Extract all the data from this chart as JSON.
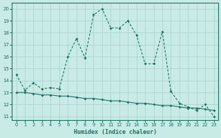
{
  "xlabel": "Humidex (Indice chaleur)",
  "xlim": [
    -0.5,
    23.5
  ],
  "ylim": [
    10.7,
    20.5
  ],
  "yticks": [
    11,
    12,
    13,
    14,
    15,
    16,
    17,
    18,
    19,
    20
  ],
  "xticks": [
    0,
    1,
    2,
    3,
    4,
    5,
    6,
    7,
    8,
    9,
    10,
    11,
    12,
    13,
    14,
    15,
    16,
    17,
    18,
    19,
    20,
    21,
    22,
    23
  ],
  "bg_color": "#c8ebe6",
  "grid_color": "#aad4ce",
  "line_color": "#1a6e62",
  "line1_x": [
    0,
    1,
    2,
    3,
    4,
    5,
    6,
    7,
    8,
    9,
    10,
    11,
    12,
    13,
    14,
    15,
    16,
    17,
    18,
    19,
    20,
    21,
    22,
    23
  ],
  "line1_y": [
    14.5,
    13.2,
    13.8,
    13.3,
    13.4,
    13.3,
    16.0,
    17.5,
    15.9,
    19.5,
    20.0,
    18.4,
    18.4,
    19.0,
    17.8,
    15.4,
    15.4,
    18.1,
    13.1,
    12.1,
    11.8,
    11.5,
    12.0,
    11.0
  ],
  "line2_x": [
    0,
    1,
    2,
    3,
    4,
    5,
    6,
    7,
    8,
    9,
    10,
    11,
    12,
    13,
    14,
    15,
    16,
    17,
    18,
    19,
    20,
    21,
    22,
    23
  ],
  "line2_y": [
    13.0,
    13.0,
    12.9,
    12.8,
    12.8,
    12.7,
    12.7,
    12.6,
    12.5,
    12.5,
    12.4,
    12.3,
    12.3,
    12.2,
    12.1,
    12.1,
    12.0,
    11.9,
    11.9,
    11.8,
    11.7,
    11.7,
    11.6,
    11.5
  ]
}
